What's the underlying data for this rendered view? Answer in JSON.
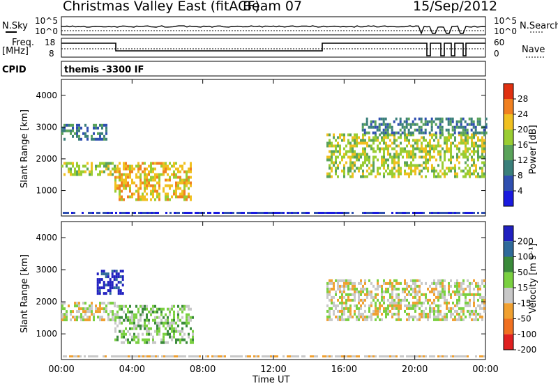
{
  "header": {
    "title": "Christmas Valley East (fitACF)",
    "beam": "Beam 07",
    "date": "15/Sep/2012"
  },
  "top_panels": {
    "nsky_label": "N.Sky",
    "nsky_ticks": [
      "10^5",
      "10^0"
    ],
    "nsearch_label": "N.Search",
    "nsearch_ticks": [
      "10^5",
      "10^0"
    ],
    "freq_label": "Freq.",
    "freq_unit": "[MHz]",
    "freq_ticks": [
      "18",
      "8"
    ],
    "nave_label": "Nave",
    "nave_ticks": [
      "60",
      "0"
    ],
    "cpid_label": "CPID",
    "cpid_value": "themis -3300 IF"
  },
  "chart_data": [
    {
      "type": "heatmap",
      "name": "power",
      "ylabel": "Slant Range [km]",
      "xlabel": "",
      "x_ticks": [
        "00:00",
        "04:00",
        "08:00",
        "12:00",
        "16:00",
        "20:00",
        "00:00"
      ],
      "y_ticks": [
        1000,
        2000,
        3000,
        4000
      ],
      "ylim": [
        200,
        4500
      ],
      "xlim_hours": [
        0,
        24
      ],
      "colorbar": {
        "label": "Power [dB]",
        "ticks": [
          4,
          8,
          12,
          16,
          20,
          24,
          28
        ],
        "range": [
          0,
          32
        ],
        "colors": [
          "#1a1adf",
          "#2f4fb0",
          "#3a7f7a",
          "#5aa35a",
          "#9acd32",
          "#f0c020",
          "#f08020",
          "#e03010"
        ]
      },
      "features": [
        {
          "t": [
            0.0,
            3.0
          ],
          "range": [
            1500,
            1900
          ],
          "power": 16
        },
        {
          "t": [
            0.0,
            2.5
          ],
          "range": [
            2600,
            3100
          ],
          "power": 8
        },
        {
          "t": [
            3.0,
            7.3
          ],
          "range": [
            700,
            1900
          ],
          "power": 20
        },
        {
          "t": [
            15.0,
            24.0
          ],
          "range": [
            1400,
            2800
          ],
          "power": 16
        },
        {
          "t": [
            17.0,
            24.0
          ],
          "range": [
            2800,
            3300
          ],
          "power": 6
        }
      ]
    },
    {
      "type": "heatmap",
      "name": "velocity",
      "ylabel": "Slant Range [km]",
      "xlabel": "Time UT",
      "x_ticks": [
        "00:00",
        "04:00",
        "08:00",
        "12:00",
        "16:00",
        "20:00",
        "00:00"
      ],
      "y_ticks": [
        1000,
        2000,
        3000,
        4000
      ],
      "ylim": [
        200,
        4500
      ],
      "xlim_hours": [
        0,
        24
      ],
      "colorbar": {
        "label": "Velocity [m s⁻¹]",
        "ticks": [
          200,
          100,
          50,
          15,
          -15,
          -50,
          -100,
          -200
        ],
        "colors": [
          "#2020c0",
          "#2f6a9a",
          "#3a8a3a",
          "#7ad040",
          "#c8c8c8",
          "#f0a030",
          "#f07020",
          "#e02020"
        ]
      },
      "features": [
        {
          "t": [
            0.0,
            3.0
          ],
          "range": [
            1400,
            2000
          ],
          "velocity": 0
        },
        {
          "t": [
            2.0,
            3.5
          ],
          "range": [
            2300,
            3000
          ],
          "velocity": 200
        },
        {
          "t": [
            3.0,
            7.5
          ],
          "range": [
            700,
            1900
          ],
          "velocity": 40
        },
        {
          "t": [
            15.0,
            24.0
          ],
          "range": [
            1400,
            2700
          ],
          "velocity": 0
        }
      ]
    }
  ]
}
